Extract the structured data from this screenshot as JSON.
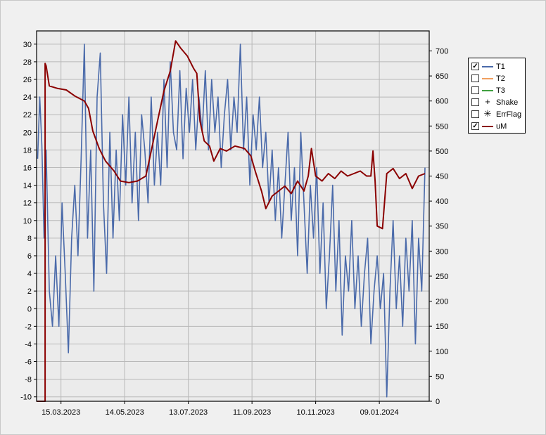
{
  "chart_data": {
    "type": "line",
    "title": "",
    "x_tick_labels": [
      "15.03.2023",
      "14.05.2023",
      "13.07.2023",
      "11.09.2023",
      "10.11.2023",
      "09.01.2024"
    ],
    "x_tick_dates": [
      "2023-03-15",
      "2023-05-14",
      "2023-07-13",
      "2023-09-11",
      "2023-11-10",
      "2024-01-09"
    ],
    "x_range": [
      "2023-02-20",
      "2024-02-25"
    ],
    "y_left": {
      "min": -10.5,
      "max": 31.5,
      "ticks": [
        -10,
        -8,
        -6,
        -4,
        -2,
        0,
        2,
        4,
        6,
        8,
        10,
        12,
        14,
        16,
        18,
        20,
        22,
        24,
        26,
        28,
        30
      ]
    },
    "y_right": {
      "min": 0,
      "max": 740,
      "ticks": [
        0,
        50,
        100,
        150,
        200,
        250,
        300,
        350,
        400,
        450,
        500,
        550,
        600,
        650,
        700
      ]
    },
    "grid": true,
    "legend_position": "right",
    "series": [
      {
        "name": "T1",
        "visible": true,
        "axis": "left",
        "color": "#4a6aaa",
        "points": [
          [
            "2023-02-21",
            17
          ],
          [
            "2023-02-23",
            24
          ],
          [
            "2023-02-25",
            18.5
          ],
          [
            "2023-02-27",
            8
          ],
          [
            "2023-03-01",
            18
          ],
          [
            "2023-03-04",
            2
          ],
          [
            "2023-03-07",
            -2
          ],
          [
            "2023-03-10",
            6
          ],
          [
            "2023-03-13",
            -2
          ],
          [
            "2023-03-16",
            12
          ],
          [
            "2023-03-19",
            4
          ],
          [
            "2023-03-22",
            -5
          ],
          [
            "2023-03-25",
            8
          ],
          [
            "2023-03-28",
            14
          ],
          [
            "2023-03-31",
            6
          ],
          [
            "2023-04-03",
            17
          ],
          [
            "2023-04-06",
            30
          ],
          [
            "2023-04-09",
            8
          ],
          [
            "2023-04-12",
            18
          ],
          [
            "2023-04-15",
            2
          ],
          [
            "2023-04-18",
            24
          ],
          [
            "2023-04-21",
            29
          ],
          [
            "2023-04-24",
            12
          ],
          [
            "2023-04-27",
            4
          ],
          [
            "2023-04-30",
            20
          ],
          [
            "2023-05-03",
            8
          ],
          [
            "2023-05-06",
            18
          ],
          [
            "2023-05-09",
            10
          ],
          [
            "2023-05-12",
            22
          ],
          [
            "2023-05-15",
            14
          ],
          [
            "2023-05-18",
            24
          ],
          [
            "2023-05-21",
            12
          ],
          [
            "2023-05-24",
            20
          ],
          [
            "2023-05-27",
            10
          ],
          [
            "2023-05-30",
            22
          ],
          [
            "2023-06-02",
            18
          ],
          [
            "2023-06-05",
            12
          ],
          [
            "2023-06-08",
            24
          ],
          [
            "2023-06-11",
            14
          ],
          [
            "2023-06-14",
            20
          ],
          [
            "2023-06-17",
            14
          ],
          [
            "2023-06-20",
            26
          ],
          [
            "2023-06-23",
            16
          ],
          [
            "2023-06-26",
            28
          ],
          [
            "2023-06-29",
            20
          ],
          [
            "2023-07-02",
            18
          ],
          [
            "2023-07-05",
            27
          ],
          [
            "2023-07-08",
            17
          ],
          [
            "2023-07-11",
            25
          ],
          [
            "2023-07-14",
            20
          ],
          [
            "2023-07-17",
            26
          ],
          [
            "2023-07-20",
            18
          ],
          [
            "2023-07-23",
            24
          ],
          [
            "2023-07-26",
            20
          ],
          [
            "2023-07-29",
            27
          ],
          [
            "2023-08-01",
            18
          ],
          [
            "2023-08-04",
            26
          ],
          [
            "2023-08-07",
            20
          ],
          [
            "2023-08-10",
            24
          ],
          [
            "2023-08-13",
            16
          ],
          [
            "2023-08-16",
            22
          ],
          [
            "2023-08-19",
            26
          ],
          [
            "2023-08-22",
            18
          ],
          [
            "2023-08-25",
            24
          ],
          [
            "2023-08-28",
            20
          ],
          [
            "2023-08-31",
            30
          ],
          [
            "2023-09-03",
            18
          ],
          [
            "2023-09-06",
            24
          ],
          [
            "2023-09-09",
            14
          ],
          [
            "2023-09-12",
            22
          ],
          [
            "2023-09-15",
            18
          ],
          [
            "2023-09-18",
            24
          ],
          [
            "2023-09-21",
            16
          ],
          [
            "2023-09-24",
            20
          ],
          [
            "2023-09-27",
            12
          ],
          [
            "2023-09-30",
            18
          ],
          [
            "2023-10-03",
            10
          ],
          [
            "2023-10-06",
            16
          ],
          [
            "2023-10-09",
            8
          ],
          [
            "2023-10-12",
            14
          ],
          [
            "2023-10-15",
            20
          ],
          [
            "2023-10-18",
            10
          ],
          [
            "2023-10-21",
            16
          ],
          [
            "2023-10-24",
            6
          ],
          [
            "2023-10-27",
            20
          ],
          [
            "2023-10-30",
            12
          ],
          [
            "2023-11-02",
            4
          ],
          [
            "2023-11-05",
            14
          ],
          [
            "2023-11-08",
            8
          ],
          [
            "2023-11-11",
            16
          ],
          [
            "2023-11-14",
            4
          ],
          [
            "2023-11-17",
            12
          ],
          [
            "2023-11-20",
            0
          ],
          [
            "2023-11-23",
            6
          ],
          [
            "2023-11-26",
            14
          ],
          [
            "2023-11-29",
            2
          ],
          [
            "2023-12-02",
            10
          ],
          [
            "2023-12-05",
            -3
          ],
          [
            "2023-12-08",
            6
          ],
          [
            "2023-12-11",
            2
          ],
          [
            "2023-12-14",
            10
          ],
          [
            "2023-12-17",
            0
          ],
          [
            "2023-12-20",
            6
          ],
          [
            "2023-12-23",
            -2
          ],
          [
            "2023-12-26",
            4
          ],
          [
            "2023-12-29",
            8
          ],
          [
            "2024-01-01",
            -4
          ],
          [
            "2024-01-04",
            2
          ],
          [
            "2024-01-07",
            6
          ],
          [
            "2024-01-10",
            0
          ],
          [
            "2024-01-13",
            4
          ],
          [
            "2024-01-16",
            -10
          ],
          [
            "2024-01-19",
            2
          ],
          [
            "2024-01-22",
            10
          ],
          [
            "2024-01-25",
            0
          ],
          [
            "2024-01-28",
            6
          ],
          [
            "2024-01-31",
            -2
          ],
          [
            "2024-02-03",
            8
          ],
          [
            "2024-02-06",
            2
          ],
          [
            "2024-02-09",
            10
          ],
          [
            "2024-02-12",
            -4
          ],
          [
            "2024-02-15",
            8
          ],
          [
            "2024-02-18",
            2
          ],
          [
            "2024-02-21",
            16
          ]
        ]
      },
      {
        "name": "T2",
        "visible": false,
        "axis": "left",
        "color": "#f0a060",
        "points": []
      },
      {
        "name": "T3",
        "visible": false,
        "axis": "left",
        "color": "#40a040",
        "points": []
      },
      {
        "name": "Shake",
        "visible": false,
        "axis": "left",
        "color": "#000000",
        "marker": "+",
        "points": []
      },
      {
        "name": "ErrFlag",
        "visible": false,
        "axis": "left",
        "color": "#000000",
        "marker": "✳",
        "points": []
      },
      {
        "name": "uM",
        "visible": true,
        "axis": "right",
        "color": "#8b0000",
        "points": [
          [
            "2023-02-20",
            0
          ],
          [
            "2023-02-28",
            0
          ],
          [
            "2023-02-28",
            675
          ],
          [
            "2023-03-01",
            670
          ],
          [
            "2023-03-04",
            630
          ],
          [
            "2023-03-12",
            625
          ],
          [
            "2023-03-20",
            622
          ],
          [
            "2023-03-28",
            610
          ],
          [
            "2023-04-06",
            600
          ],
          [
            "2023-04-10",
            585
          ],
          [
            "2023-04-14",
            540
          ],
          [
            "2023-04-20",
            505
          ],
          [
            "2023-04-26",
            480
          ],
          [
            "2023-05-04",
            460
          ],
          [
            "2023-05-10",
            440
          ],
          [
            "2023-05-18",
            437
          ],
          [
            "2023-05-26",
            440
          ],
          [
            "2023-06-03",
            450
          ],
          [
            "2023-06-08",
            500
          ],
          [
            "2023-06-14",
            560
          ],
          [
            "2023-06-20",
            620
          ],
          [
            "2023-06-26",
            660
          ],
          [
            "2023-07-01",
            720
          ],
          [
            "2023-07-06",
            705
          ],
          [
            "2023-07-12",
            690
          ],
          [
            "2023-07-18",
            665
          ],
          [
            "2023-07-21",
            655
          ],
          [
            "2023-07-24",
            560
          ],
          [
            "2023-07-28",
            520
          ],
          [
            "2023-08-02",
            510
          ],
          [
            "2023-08-06",
            480
          ],
          [
            "2023-08-12",
            505
          ],
          [
            "2023-08-18",
            500
          ],
          [
            "2023-08-26",
            510
          ],
          [
            "2023-09-04",
            505
          ],
          [
            "2023-09-10",
            490
          ],
          [
            "2023-09-14",
            460
          ],
          [
            "2023-09-20",
            420
          ],
          [
            "2023-09-24",
            385
          ],
          [
            "2023-09-30",
            410
          ],
          [
            "2023-10-06",
            420
          ],
          [
            "2023-10-12",
            430
          ],
          [
            "2023-10-18",
            415
          ],
          [
            "2023-10-24",
            440
          ],
          [
            "2023-10-30",
            420
          ],
          [
            "2023-11-03",
            450
          ],
          [
            "2023-11-06",
            505
          ],
          [
            "2023-11-10",
            450
          ],
          [
            "2023-11-16",
            440
          ],
          [
            "2023-11-22",
            455
          ],
          [
            "2023-11-28",
            445
          ],
          [
            "2023-12-04",
            460
          ],
          [
            "2023-12-10",
            450
          ],
          [
            "2023-12-16",
            455
          ],
          [
            "2023-12-22",
            460
          ],
          [
            "2023-12-28",
            450
          ],
          [
            "2024-01-01",
            450
          ],
          [
            "2024-01-03",
            500
          ],
          [
            "2024-01-05",
            440
          ],
          [
            "2024-01-07",
            350
          ],
          [
            "2024-01-12",
            345
          ],
          [
            "2024-01-16",
            455
          ],
          [
            "2024-01-22",
            465
          ],
          [
            "2024-01-28",
            445
          ],
          [
            "2024-02-03",
            455
          ],
          [
            "2024-02-09",
            425
          ],
          [
            "2024-02-15",
            450
          ],
          [
            "2024-02-21",
            455
          ]
        ]
      }
    ]
  }
}
